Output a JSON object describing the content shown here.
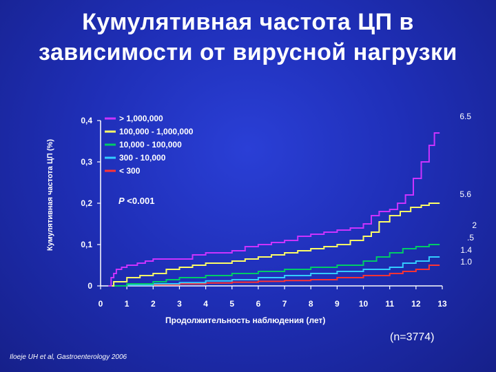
{
  "title_line1": "Кумулятивная частота ЦП в",
  "title_line2": "зависимости от вирусной нагрузки",
  "n_label": "(n=3774)",
  "citation": "Iloeje UH et al, Gastroenterology 2006",
  "p_value_label": "P",
  "p_value_text": "<0.001",
  "end_labels": {
    "top": "6.5",
    "second": "5.6",
    "third": "2",
    "third_b": ".5",
    "fourth": "1.4",
    "fifth": "1.0"
  },
  "chart_data": {
    "type": "line",
    "xlabel": "Продолжительность наблюдения (лет)",
    "ylabel": "Кумулятивная частота ЦП (%)",
    "xlim": [
      0,
      13
    ],
    "ylim": [
      0,
      0.4
    ],
    "x_ticks": [
      "0",
      "1",
      "2",
      "3",
      "4",
      "5",
      "6",
      "7",
      "8",
      "9",
      "10",
      "11",
      "12",
      "13"
    ],
    "y_ticks": [
      {
        "value": 0,
        "label": "0"
      },
      {
        "value": 0.1,
        "label": "0,1"
      },
      {
        "value": 0.2,
        "label": "0,2"
      },
      {
        "value": 0.3,
        "label": "0,3"
      },
      {
        "value": 0.4,
        "label": "0,4"
      }
    ],
    "legend_position": "top-left",
    "series": [
      {
        "name": "> 1,000,000",
        "color": "#cc33ff",
        "points": [
          [
            0.3,
            0.0
          ],
          [
            0.4,
            0.02
          ],
          [
            0.5,
            0.03
          ],
          [
            0.6,
            0.04
          ],
          [
            0.8,
            0.045
          ],
          [
            1,
            0.05
          ],
          [
            1.4,
            0.055
          ],
          [
            1.7,
            0.06
          ],
          [
            2,
            0.065
          ],
          [
            3,
            0.065
          ],
          [
            3.5,
            0.075
          ],
          [
            4,
            0.08
          ],
          [
            5,
            0.085
          ],
          [
            5.5,
            0.095
          ],
          [
            6,
            0.1
          ],
          [
            6.5,
            0.105
          ],
          [
            7,
            0.11
          ],
          [
            7.5,
            0.12
          ],
          [
            8,
            0.125
          ],
          [
            8.5,
            0.13
          ],
          [
            9,
            0.135
          ],
          [
            9.5,
            0.14
          ],
          [
            10,
            0.15
          ],
          [
            10.3,
            0.17
          ],
          [
            10.6,
            0.18
          ],
          [
            11,
            0.185
          ],
          [
            11.3,
            0.2
          ],
          [
            11.6,
            0.22
          ],
          [
            11.9,
            0.26
          ],
          [
            12.2,
            0.3
          ],
          [
            12.5,
            0.34
          ],
          [
            12.7,
            0.37
          ],
          [
            12.9,
            0.37
          ]
        ]
      },
      {
        "name": "100,000 - 1,000,000",
        "color": "#ffff66",
        "points": [
          [
            0.3,
            0.0
          ],
          [
            0.5,
            0.01
          ],
          [
            1,
            0.02
          ],
          [
            1.5,
            0.025
          ],
          [
            2,
            0.03
          ],
          [
            2.5,
            0.04
          ],
          [
            3,
            0.045
          ],
          [
            3.5,
            0.05
          ],
          [
            4,
            0.055
          ],
          [
            5,
            0.06
          ],
          [
            5.5,
            0.065
          ],
          [
            6,
            0.07
          ],
          [
            6.5,
            0.075
          ],
          [
            7,
            0.08
          ],
          [
            7.5,
            0.085
          ],
          [
            8,
            0.09
          ],
          [
            8.5,
            0.095
          ],
          [
            9,
            0.1
          ],
          [
            9.5,
            0.11
          ],
          [
            10,
            0.12
          ],
          [
            10.3,
            0.13
          ],
          [
            10.6,
            0.155
          ],
          [
            11,
            0.17
          ],
          [
            11.4,
            0.18
          ],
          [
            11.8,
            0.19
          ],
          [
            12.2,
            0.195
          ],
          [
            12.5,
            0.2
          ],
          [
            12.9,
            0.2
          ]
        ]
      },
      {
        "name": "10,000 - 100,000",
        "color": "#00cc66",
        "points": [
          [
            0.3,
            0.0
          ],
          [
            1,
            0.005
          ],
          [
            2,
            0.01
          ],
          [
            2.5,
            0.015
          ],
          [
            3,
            0.02
          ],
          [
            4,
            0.025
          ],
          [
            5,
            0.03
          ],
          [
            6,
            0.035
          ],
          [
            7,
            0.04
          ],
          [
            8,
            0.045
          ],
          [
            9,
            0.05
          ],
          [
            10,
            0.06
          ],
          [
            10.5,
            0.07
          ],
          [
            11,
            0.08
          ],
          [
            11.5,
            0.09
          ],
          [
            12,
            0.095
          ],
          [
            12.5,
            0.1
          ],
          [
            12.9,
            0.1
          ]
        ]
      },
      {
        "name": "300 - 10,000",
        "color": "#33ccff",
        "points": [
          [
            0.3,
            0.0
          ],
          [
            1,
            0.002
          ],
          [
            2,
            0.005
          ],
          [
            3,
            0.008
          ],
          [
            4,
            0.012
          ],
          [
            5,
            0.015
          ],
          [
            6,
            0.02
          ],
          [
            7,
            0.025
          ],
          [
            8,
            0.03
          ],
          [
            9,
            0.035
          ],
          [
            10,
            0.04
          ],
          [
            11,
            0.045
          ],
          [
            11.5,
            0.055
          ],
          [
            12,
            0.06
          ],
          [
            12.5,
            0.07
          ],
          [
            12.9,
            0.07
          ]
        ]
      },
      {
        "name": "< 300",
        "color": "#ff3333",
        "points": [
          [
            0.3,
            0.0
          ],
          [
            1,
            0.002
          ],
          [
            2,
            0.003
          ],
          [
            3,
            0.005
          ],
          [
            4,
            0.007
          ],
          [
            5,
            0.009
          ],
          [
            6,
            0.011
          ],
          [
            7,
            0.013
          ],
          [
            8,
            0.015
          ],
          [
            9,
            0.02
          ],
          [
            10,
            0.025
          ],
          [
            11,
            0.03
          ],
          [
            11.5,
            0.035
          ],
          [
            12,
            0.04
          ],
          [
            12.5,
            0.05
          ],
          [
            12.9,
            0.05
          ]
        ]
      }
    ]
  }
}
